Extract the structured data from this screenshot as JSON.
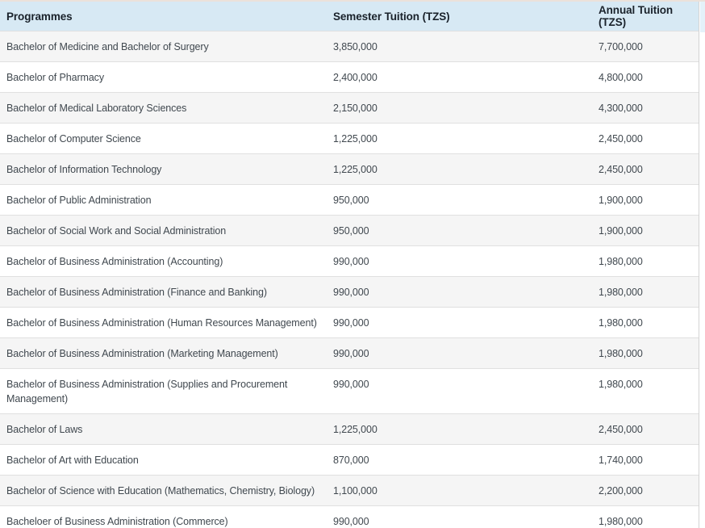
{
  "table": {
    "columns": [
      {
        "label": "Programmes"
      },
      {
        "label": "Semester Tuition (TZS)"
      },
      {
        "label": "Annual Tuition (TZS)"
      }
    ],
    "rows": [
      {
        "programme": "Bachelor of Medicine and Bachelor of Surgery",
        "semester": "3,850,000",
        "annual": "7,700,000"
      },
      {
        "programme": "Bachelor of Pharmacy",
        "semester": "2,400,000",
        "annual": "4,800,000"
      },
      {
        "programme": "Bachelor of Medical Laboratory Sciences",
        "semester": "2,150,000",
        "annual": "4,300,000"
      },
      {
        "programme": "Bachelor of Computer Science",
        "semester": "1,225,000",
        "annual": "2,450,000"
      },
      {
        "programme": "Bachelor of Information Technology",
        "semester": "1,225,000",
        "annual": "2,450,000"
      },
      {
        "programme": "Bachelor of Public Administration",
        "semester": "950,000",
        "annual": "1,900,000"
      },
      {
        "programme": "Bachelor of Social Work and Social Administration",
        "semester": "950,000",
        "annual": "1,900,000"
      },
      {
        "programme": "Bachelor of Business Administration (Accounting)",
        "semester": "990,000",
        "annual": "1,980,000"
      },
      {
        "programme": "Bachelor of Business Administration (Finance and Banking)",
        "semester": "990,000",
        "annual": "1,980,000"
      },
      {
        "programme": "Bachelor of Business Administration (Human Resources Management)",
        "semester": "990,000",
        "annual": "1,980,000"
      },
      {
        "programme": "Bachelor of Business Administration (Marketing Management)",
        "semester": "990,000",
        "annual": "1,980,000"
      },
      {
        "programme": "Bachelor of Business Administration (Supplies and Procurement Management)",
        "semester": "990,000",
        "annual": "1,980,000"
      },
      {
        "programme": "Bachelor of Laws",
        "semester": "1,225,000",
        "annual": "2,450,000"
      },
      {
        "programme": "Bachelor of Art with Education",
        "semester": "870,000",
        "annual": "1,740,000"
      },
      {
        "programme": "Bachelor of Science with Education (Mathematics, Chemistry, Biology)",
        "semester": "1,100,000",
        "annual": "2,200,000"
      },
      {
        "programme": "Bacheloer of Business Administration (Commerce)",
        "semester": "990,000",
        "annual": "1,980,000"
      }
    ],
    "colors": {
      "header_bg": "#d7e9f4",
      "header_text": "#1a222b",
      "row_text": "#40484f",
      "row_alt_bg": "#f5f5f5",
      "divider": "#e0e0e0",
      "top_accent": "#ebe1da",
      "right_gutter": "#e4f1f9"
    }
  }
}
